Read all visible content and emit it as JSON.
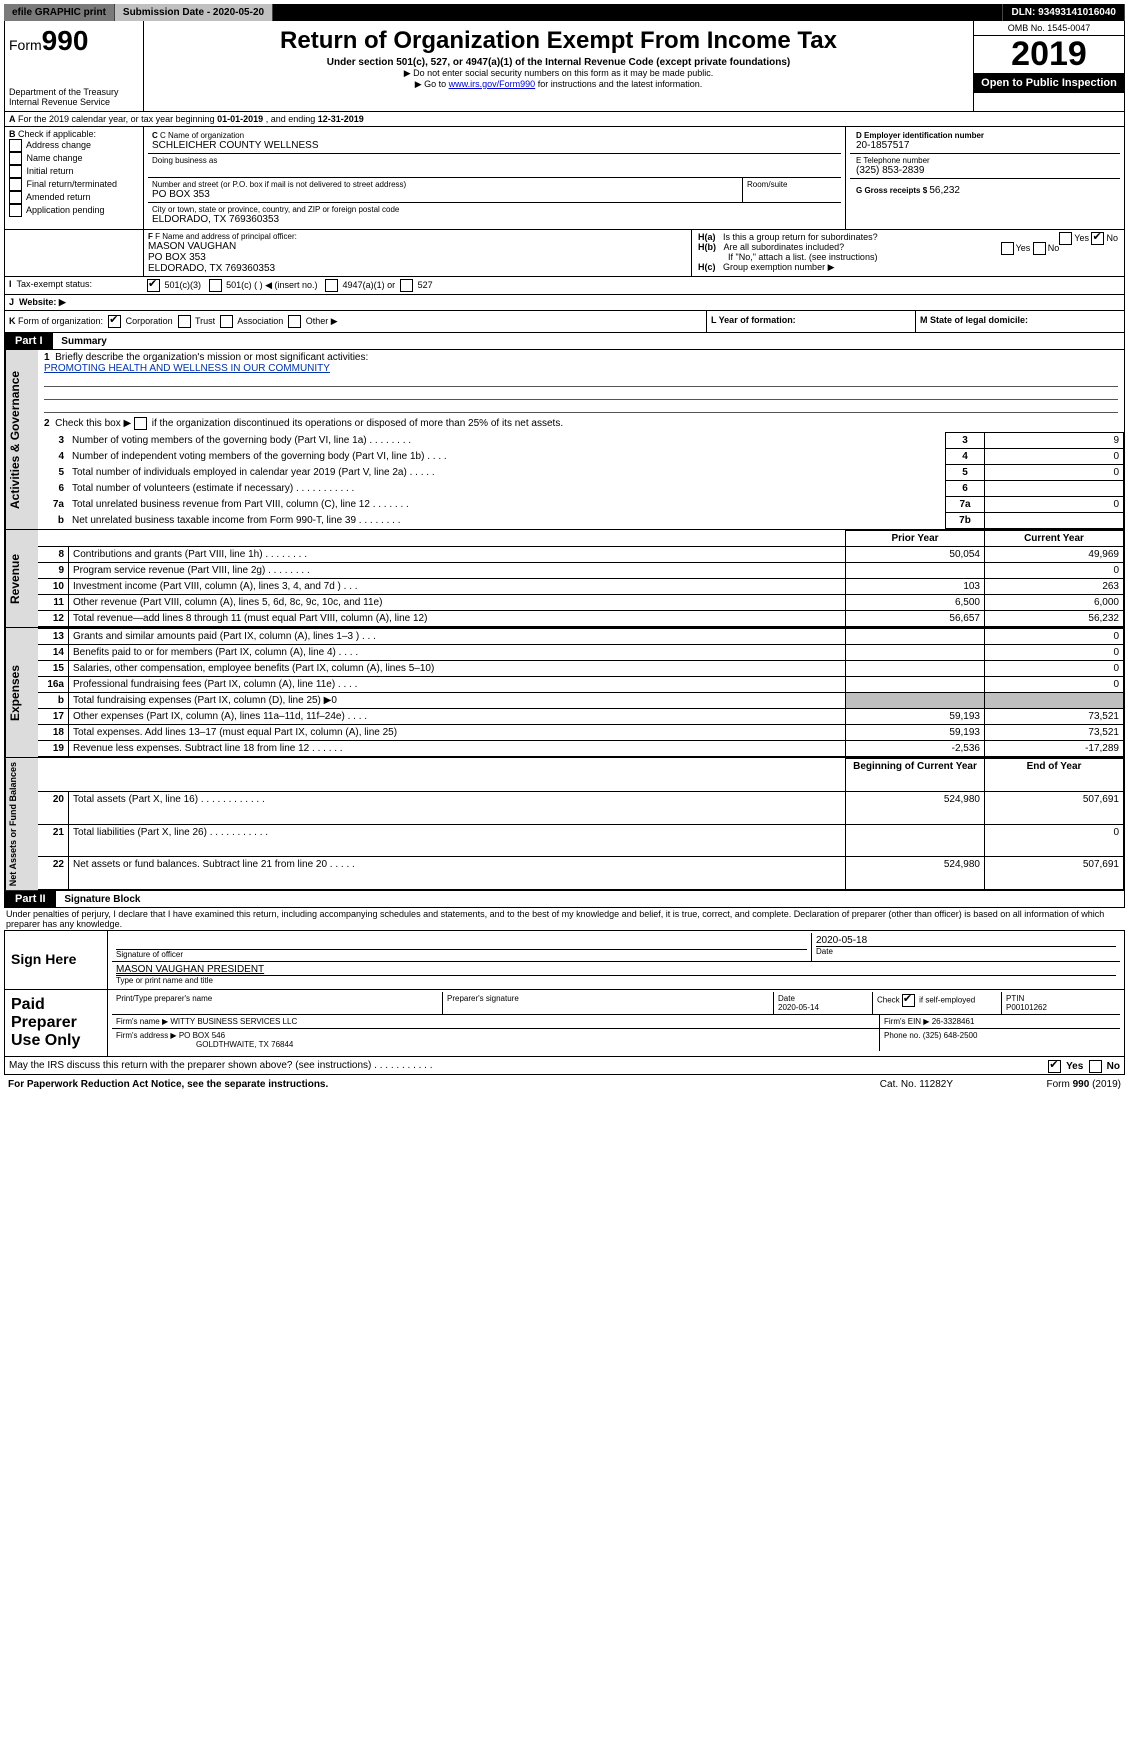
{
  "top": {
    "efile": "efile GRAPHIC print",
    "submission_label": "Submission Date - 2020-05-20",
    "dln": "DLN: 93493141016040"
  },
  "header": {
    "form_prefix": "Form",
    "form_number": "990",
    "dept1": "Department of the Treasury",
    "dept2": "Internal Revenue Service",
    "title": "Return of Organization Exempt From Income Tax",
    "subtitle": "Under section 501(c), 527, or 4947(a)(1) of the Internal Revenue Code (except private foundations)",
    "note1": "▶ Do not enter social security numbers on this form as it may be made public.",
    "note2_pre": "▶ Go to ",
    "note2_link": "www.irs.gov/Form990",
    "note2_post": " for instructions and the latest information.",
    "omb": "OMB No. 1545-0047",
    "year": "2019",
    "open": "Open to Public Inspection"
  },
  "lineA": {
    "text_pre": "For the 2019 calendar year, or tax year beginning ",
    "begin": "01-01-2019",
    "mid": " , and ending ",
    "end": "12-31-2019"
  },
  "boxB": {
    "title": "Check if applicable:",
    "items": [
      "Address change",
      "Name change",
      "Initial return",
      "Final return/terminated",
      "Amended return",
      "Application pending"
    ]
  },
  "boxC": {
    "label": "C Name of organization",
    "name": "SCHLEICHER COUNTY WELLNESS",
    "dba_label": "Doing business as",
    "street_label": "Number and street (or P.O. box if mail is not delivered to street address)",
    "room_label": "Room/suite",
    "street": "PO BOX 353",
    "city_label": "City or town, state or province, country, and ZIP or foreign postal code",
    "city": "ELDORADO, TX  769360353"
  },
  "boxD": {
    "label": "D Employer identification number",
    "value": "20-1857517"
  },
  "boxE": {
    "label": "E Telephone number",
    "value": "(325) 853-2839"
  },
  "boxG": {
    "label": "G Gross receipts $ ",
    "value": "56,232"
  },
  "boxF": {
    "label": "F Name and address of principal officer:",
    "line1": "MASON VAUGHAN",
    "line2": "PO BOX 353",
    "line3": "ELDORADO, TX  769360353"
  },
  "boxH": {
    "a": "Is this a group return for subordinates?",
    "b": "Are all subordinates included?",
    "b_note": "If \"No,\" attach a list. (see instructions)",
    "c": "Group exemption number ▶"
  },
  "boxI": {
    "label": "Tax-exempt status:",
    "opt1": "501(c)(3)",
    "opt2": "501(c) (  ) ◀ (insert no.)",
    "opt3": "4947(a)(1) or",
    "opt4": "527"
  },
  "boxJ": {
    "label": "Website: ▶"
  },
  "boxK": {
    "label": "Form of organization:",
    "opts": [
      "Corporation",
      "Trust",
      "Association",
      "Other ▶"
    ]
  },
  "boxL": {
    "label": "L Year of formation:"
  },
  "boxM": {
    "label": "M State of legal domicile:"
  },
  "part1": {
    "header": "Part I",
    "title": "Summary",
    "line1_label": "Briefly describe the organization's mission or most significant activities:",
    "mission": "PROMOTING HEALTH AND WELLNESS IN OUR COMMUNITY",
    "line2": "Check this box ▶  if the organization discontinued its operations or disposed of more than 25% of its net assets.",
    "lines_simple": [
      {
        "n": "3",
        "t": "Number of voting members of the governing body (Part VI, line 1a)  .    .    .    .    .    .    .    .",
        "c": "3",
        "v": "9"
      },
      {
        "n": "4",
        "t": "Number of independent voting members of the governing body (Part VI, line 1b)  .    .    .    .",
        "c": "4",
        "v": "0"
      },
      {
        "n": "5",
        "t": "Total number of individuals employed in calendar year 2019 (Part V, line 2a)  .    .    .    .    .",
        "c": "5",
        "v": "0"
      },
      {
        "n": "6",
        "t": "Total number of volunteers (estimate if necessary)  .    .    .    .    .    .    .    .    .    .    .",
        "c": "6",
        "v": ""
      },
      {
        "n": "7a",
        "t": "Total unrelated business revenue from Part VIII, column (C), line 12  .    .    .    .    .    .    .",
        "c": "7a",
        "v": "0"
      },
      {
        "n": "b",
        "t": "Net unrelated business taxable income from Form 990-T, line 39  .    .    .    .    .    .    .    .",
        "c": "7b",
        "v": ""
      }
    ],
    "col_prior": "Prior Year",
    "col_current": "Current Year",
    "revenue": [
      {
        "n": "8",
        "t": "Contributions and grants (Part VIII, line 1h)  .    .    .    .    .    .    .    .",
        "p": "50,054",
        "c": "49,969"
      },
      {
        "n": "9",
        "t": "Program service revenue (Part VIII, line 2g)  .    .    .    .    .    .    .    .",
        "p": "",
        "c": "0"
      },
      {
        "n": "10",
        "t": "Investment income (Part VIII, column (A), lines 3, 4, and 7d )  .    .    .",
        "p": "103",
        "c": "263"
      },
      {
        "n": "11",
        "t": "Other revenue (Part VIII, column (A), lines 5, 6d, 8c, 9c, 10c, and 11e)",
        "p": "6,500",
        "c": "6,000"
      },
      {
        "n": "12",
        "t": "Total revenue—add lines 8 through 11 (must equal Part VIII, column (A), line 12)",
        "p": "56,657",
        "c": "56,232"
      }
    ],
    "expenses": [
      {
        "n": "13",
        "t": "Grants and similar amounts paid (Part IX, column (A), lines 1–3 )  .    .    .",
        "p": "",
        "c": "0"
      },
      {
        "n": "14",
        "t": "Benefits paid to or for members (Part IX, column (A), line 4)  .    .    .    .",
        "p": "",
        "c": "0"
      },
      {
        "n": "15",
        "t": "Salaries, other compensation, employee benefits (Part IX, column (A), lines 5–10)",
        "p": "",
        "c": "0"
      },
      {
        "n": "16a",
        "t": "Professional fundraising fees (Part IX, column (A), line 11e)  .    .    .    .",
        "p": "",
        "c": "0"
      },
      {
        "n": "b",
        "t": "Total fundraising expenses (Part IX, column (D), line 25) ▶0",
        "p": "–shade–",
        "c": "–shade–"
      },
      {
        "n": "17",
        "t": "Other expenses (Part IX, column (A), lines 11a–11d, 11f–24e)  .    .    .    .",
        "p": "59,193",
        "c": "73,521"
      },
      {
        "n": "18",
        "t": "Total expenses. Add lines 13–17 (must equal Part IX, column (A), line 25)",
        "p": "59,193",
        "c": "73,521"
      },
      {
        "n": "19",
        "t": "Revenue less expenses. Subtract line 18 from line 12  .    .    .    .    .    .",
        "p": "-2,536",
        "c": "-17,289"
      }
    ],
    "col_begin": "Beginning of Current Year",
    "col_end": "End of Year",
    "net": [
      {
        "n": "20",
        "t": "Total assets (Part X, line 16)  .    .    .    .    .    .    .    .    .    .    .    .",
        "p": "524,980",
        "c": "507,691"
      },
      {
        "n": "21",
        "t": "Total liabilities (Part X, line 26)  .    .    .    .    .    .    .    .    .    .    .",
        "p": "",
        "c": "0"
      },
      {
        "n": "22",
        "t": "Net assets or fund balances. Subtract line 21 from line 20  .    .    .    .    .",
        "p": "524,980",
        "c": "507,691"
      }
    ],
    "vlabels": {
      "gov": "Activities & Governance",
      "rev": "Revenue",
      "exp": "Expenses",
      "net": "Net Assets or Fund Balances"
    }
  },
  "part2": {
    "header": "Part II",
    "title": "Signature Block",
    "perjury": "Under penalties of perjury, I declare that I have examined this return, including accompanying schedules and statements, and to the best of my knowledge and belief, it is true, correct, and complete. Declaration of preparer (other than officer) is based on all information of which preparer has any knowledge.",
    "sign_here": "Sign Here",
    "sig_officer": "Signature of officer",
    "sig_date_label": "Date",
    "sig_date": "2020-05-18",
    "sig_name": "MASON VAUGHAN  PRESIDENT",
    "sig_name_label": "Type or print name and title",
    "paid": "Paid Preparer Use Only",
    "prep_name_label": "Print/Type preparer's name",
    "prep_sig_label": "Preparer's signature",
    "prep_date_label": "Date",
    "prep_date": "2020-05-14",
    "prep_check_label": "Check         if self-employed",
    "ptin_label": "PTIN",
    "ptin": "P00101262",
    "firm_name_label": "Firm's name    ▶",
    "firm_name": "WITTY BUSINESS SERVICES LLC",
    "firm_ein_label": "Firm's EIN ▶",
    "firm_ein": "26-3328461",
    "firm_addr_label": "Firm's address ▶",
    "firm_addr1": "PO BOX 546",
    "firm_addr2": "GOLDTHWAITE, TX  76844",
    "firm_phone_label": "Phone no. ",
    "firm_phone": "(325) 648-2500",
    "discuss": "May the IRS discuss this return with the preparer shown above? (see instructions)  .    .    .    .    .    .    .    .    .    .    .",
    "yes": "Yes",
    "no": "No"
  },
  "footer": {
    "left": "For Paperwork Reduction Act Notice, see the separate instructions.",
    "center": "Cat. No. 11282Y",
    "right": "Form 990 (2019)"
  },
  "colors": {
    "black": "#000000",
    "gray_bg": "#dcdcdc",
    "link": "#0000cc"
  }
}
